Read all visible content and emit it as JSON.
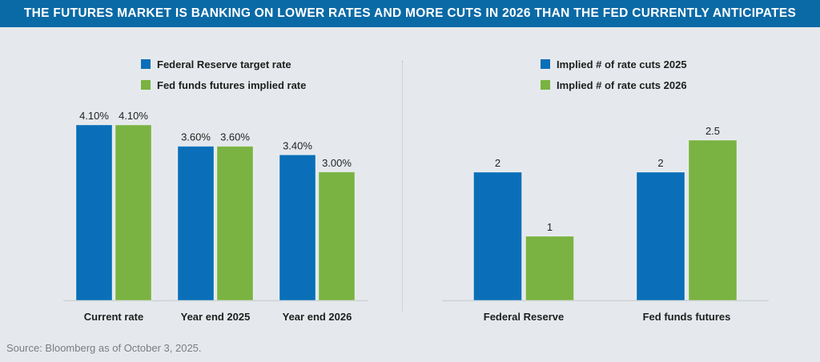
{
  "title": "THE FUTURES MARKET IS BANKING ON LOWER RATES AND MORE CUTS IN 2026 THAN THE FED CURRENTLY ANTICIPATES",
  "source": "Source: Bloomberg as of October 3, 2025.",
  "colors": {
    "blue": "#0a6fb8",
    "green": "#7ab342",
    "header": "#0a6aa6",
    "background": "#e5e9ed"
  },
  "chart_data": [
    {
      "type": "bar",
      "title": "",
      "xlabel": "",
      "ylabel": "",
      "grid": false,
      "legend_position": "top-center",
      "categories": [
        "Current rate",
        "Year end 2025",
        "Year end 2026"
      ],
      "series": [
        {
          "name": "Federal Reserve target rate",
          "values": [
            4.1,
            3.6,
            3.4
          ],
          "labels": [
            "4.10%",
            "3.60%",
            "3.40%"
          ],
          "color": "#0a6fb8"
        },
        {
          "name": "Fed funds futures implied rate",
          "values": [
            4.1,
            3.6,
            3.0
          ],
          "labels": [
            "4.10%",
            "3.60%",
            "3.00%"
          ],
          "color": "#7ab342"
        }
      ],
      "ylim": [
        0,
        4.1
      ]
    },
    {
      "type": "bar",
      "title": "",
      "xlabel": "",
      "ylabel": "",
      "grid": false,
      "legend_position": "top-center",
      "categories": [
        "Federal Reserve",
        "Fed funds futures"
      ],
      "series": [
        {
          "name": "Implied # of rate cuts 2025",
          "values": [
            2,
            2
          ],
          "labels": [
            "2",
            "2"
          ],
          "color": "#0a6fb8"
        },
        {
          "name": "Implied # of rate cuts 2026",
          "values": [
            1,
            2.5
          ],
          "labels": [
            "1",
            "2.5"
          ],
          "color": "#7ab342"
        }
      ],
      "ylim": [
        0,
        2.5
      ]
    }
  ]
}
